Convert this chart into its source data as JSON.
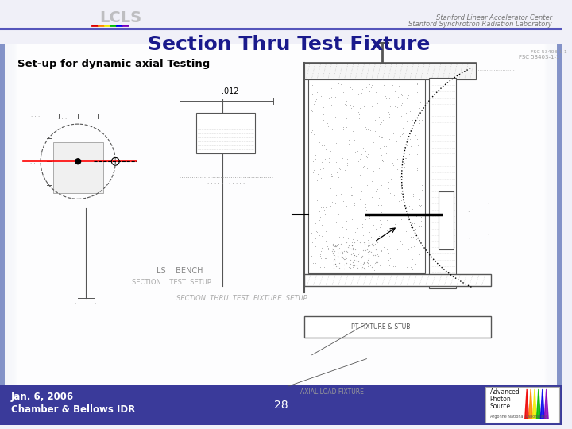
{
  "title_line1": "Section Thru Test Fixture",
  "subtitle": "Set-up for dynamic axial Testing",
  "footer_left_line1": "Jan. 6, 2006",
  "footer_left_line2": "Chamber & Bellows IDR",
  "footer_center": "28",
  "header_right_line1": "Stanford Linear Accelerator Center",
  "header_right_line2": "Stanford Synchrotron Radiation Laboratory",
  "bg_color": "#f0f0f8",
  "footer_bg": "#3a3a9a",
  "footer_text_color": "#ffffff",
  "title_color": "#1a1a8c",
  "subtitle_color": "#000000",
  "header_line_color": "#5555bb",
  "side_bar_color": "#8090c8",
  "content_bg": "#f8f8ff",
  "draw_color": "#555555",
  "draw_light": "#999999"
}
